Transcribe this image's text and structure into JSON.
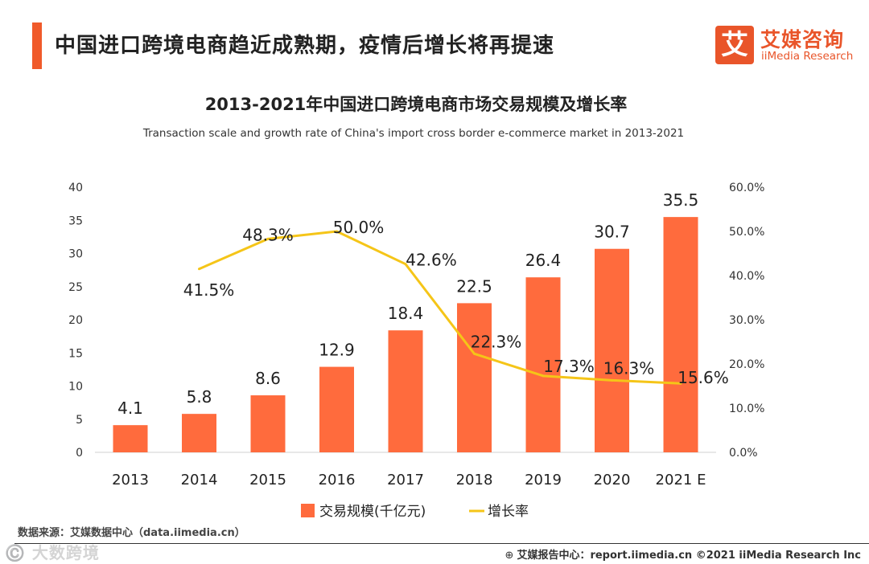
{
  "header": {
    "title": "中国进口跨境电商趋近成熟期，疫情后增长将再提速"
  },
  "logo": {
    "glyph": "艾",
    "name_cn": "艾媒咨询",
    "name_en": "iiMedia Research",
    "color": "#e9552a"
  },
  "chart_data": {
    "type": "bar",
    "title": "2013-2021年中国进口跨境电商市场交易规模及增长率",
    "subtitle": "Transaction scale and growth rate of China's import cross border e-commerce market in 2013-2021",
    "categories": [
      "2013",
      "2014",
      "2015",
      "2016",
      "2017",
      "2018",
      "2019",
      "2020",
      "2021 E"
    ],
    "series": [
      {
        "name": "交易规模(千亿元)",
        "type": "bar",
        "axis": "left",
        "color": "#ff6b3d",
        "values": [
          4.1,
          5.8,
          8.6,
          12.9,
          18.4,
          22.5,
          26.4,
          30.7,
          35.5
        ],
        "labels": [
          "4.1",
          "5.8",
          "8.6",
          "12.9",
          "18.4",
          "22.5",
          "26.4",
          "30.7",
          "35.5"
        ]
      },
      {
        "name": "增长率",
        "type": "line",
        "axis": "right",
        "color": "#f5c518",
        "values": [
          null,
          41.5,
          48.3,
          50.0,
          42.6,
          22.3,
          17.3,
          16.3,
          15.6
        ],
        "labels": [
          "",
          "41.5%",
          "48.3%",
          "50.0%",
          "42.6%",
          "22.3%",
          "17.3%",
          "16.3%",
          "15.6%"
        ]
      }
    ],
    "y_left": {
      "min": 0,
      "max": 40,
      "ticks": [
        "0",
        "5",
        "10",
        "15",
        "20",
        "25",
        "30",
        "35",
        "40"
      ]
    },
    "y_right": {
      "min": 0,
      "max": 60,
      "ticks": [
        "0.0%",
        "10.0%",
        "20.0%",
        "30.0%",
        "40.0%",
        "50.0%",
        "60.0%"
      ]
    },
    "grid": false,
    "legend": "bottom"
  },
  "source": "数据来源：艾媒数据中心（data.iimedia.cn）",
  "watermark": "©️ 大数跨境",
  "footer": {
    "globe": "⊕",
    "text": "艾媒报告中心：report.iimedia.cn   ©2021  iiMedia Research  Inc"
  }
}
